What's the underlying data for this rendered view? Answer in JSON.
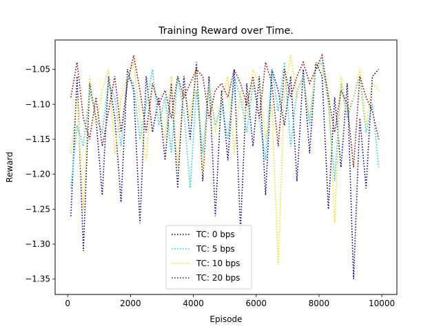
{
  "chart_data": {
    "type": "line",
    "title": "Training Reward over Time.",
    "xlabel": "Episode",
    "ylabel": "Reward",
    "xlim": [
      -400,
      10480
    ],
    "ylim": [
      -1.372,
      -1.008
    ],
    "xticks": [
      0,
      2000,
      4000,
      6000,
      8000,
      10000
    ],
    "xtick_labels": [
      "0",
      "2000",
      "4000",
      "6000",
      "8000",
      "10000"
    ],
    "yticks": [
      -1.35,
      -1.3,
      -1.25,
      -1.2,
      -1.15,
      -1.1,
      -1.05
    ],
    "ytick_labels": [
      "−1.35",
      "−1.30",
      "−1.25",
      "−1.20",
      "−1.15",
      "−1.10",
      "−1.05"
    ],
    "line_style": "dotted",
    "legend_position": "lower center",
    "x": [
      100,
      300,
      500,
      700,
      900,
      1100,
      1300,
      1500,
      1700,
      1900,
      2100,
      2300,
      2500,
      2700,
      2900,
      3100,
      3300,
      3500,
      3700,
      3900,
      4100,
      4300,
      4500,
      4700,
      4900,
      5100,
      5300,
      5500,
      5700,
      5900,
      6100,
      6300,
      6500,
      6700,
      6900,
      7100,
      7300,
      7500,
      7700,
      7900,
      8100,
      8300,
      8500,
      8700,
      8900,
      9100,
      9300,
      9500,
      9700,
      9900
    ],
    "series": [
      {
        "name": "TC: 0 bps",
        "color": "#00008b",
        "values": [
          -1.26,
          -1.06,
          -1.31,
          -1.07,
          -1.12,
          -1.23,
          -1.06,
          -1.12,
          -1.24,
          -1.05,
          -1.08,
          -1.27,
          -1.06,
          -1.14,
          -1.09,
          -1.18,
          -1.07,
          -1.22,
          -1.06,
          -1.15,
          -1.04,
          -1.21,
          -1.06,
          -1.26,
          -1.08,
          -1.18,
          -1.05,
          -1.28,
          -1.07,
          -1.16,
          -1.06,
          -1.23,
          -1.05,
          -1.08,
          -1.13,
          -1.06,
          -1.21,
          -1.05,
          -1.17,
          -1.04,
          -1.06,
          -1.25,
          -1.09,
          -1.19,
          -1.07,
          -1.35,
          -1.12,
          -1.22,
          -1.06,
          -1.05
        ]
      },
      {
        "name": "TC: 5 bps",
        "color": "#00cfe8",
        "values": [
          -1.22,
          -1.13,
          -1.16,
          -1.08,
          -1.12,
          -1.14,
          -1.07,
          -1.09,
          -1.16,
          -1.06,
          -1.07,
          -1.15,
          -1.1,
          -1.05,
          -1.13,
          -1.09,
          -1.17,
          -1.06,
          -1.11,
          -1.22,
          -1.08,
          -1.17,
          -1.07,
          -1.13,
          -1.1,
          -1.15,
          -1.06,
          -1.09,
          -1.14,
          -1.07,
          -1.12,
          -1.18,
          -1.05,
          -1.11,
          -1.04,
          -1.16,
          -1.08,
          -1.06,
          -1.13,
          -1.05,
          -1.04,
          -1.1,
          -1.21,
          -1.07,
          -1.12,
          -1.09,
          -1.06,
          -1.14,
          -1.1,
          -1.19
        ]
      },
      {
        "name": "TC: 10 bps",
        "color": "#ffd700",
        "values": [
          -1.17,
          -1.09,
          -1.25,
          -1.06,
          -1.13,
          -1.08,
          -1.05,
          -1.17,
          -1.09,
          -1.06,
          -1.04,
          -1.12,
          -1.18,
          -1.07,
          -1.1,
          -1.15,
          -1.06,
          -1.19,
          -1.08,
          -1.12,
          -1.05,
          -1.2,
          -1.07,
          -1.14,
          -1.09,
          -1.06,
          -1.17,
          -1.08,
          -1.12,
          -1.05,
          -1.07,
          -1.15,
          -1.1,
          -1.33,
          -1.08,
          -1.03,
          -1.09,
          -1.06,
          -1.12,
          -1.04,
          -1.05,
          -1.08,
          -1.27,
          -1.06,
          -1.11,
          -1.09,
          -1.05,
          -1.13,
          -1.07,
          -1.08
        ]
      },
      {
        "name": "TC: 20 bps",
        "color": "#8b0000",
        "values": [
          -1.09,
          -1.04,
          -1.12,
          -1.15,
          -1.09,
          -1.16,
          -1.11,
          -1.06,
          -1.14,
          -1.07,
          -1.03,
          -1.08,
          -1.14,
          -1.07,
          -1.1,
          -1.08,
          -1.12,
          -1.06,
          -1.09,
          -1.07,
          -1.05,
          -1.06,
          -1.12,
          -1.08,
          -1.07,
          -1.09,
          -1.05,
          -1.07,
          -1.1,
          -1.06,
          -1.12,
          -1.04,
          -1.07,
          -1.16,
          -1.05,
          -1.09,
          -1.06,
          -1.04,
          -1.07,
          -1.05,
          -1.03,
          -1.09,
          -1.14,
          -1.08,
          -1.1,
          -1.19,
          -1.06,
          -1.09,
          -1.11,
          -1.15
        ]
      }
    ]
  }
}
